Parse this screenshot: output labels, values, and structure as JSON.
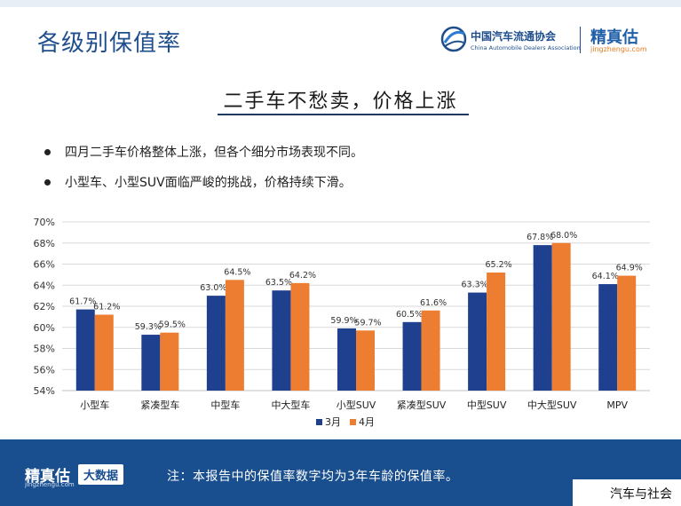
{
  "page": {
    "title": "各级别保值率",
    "headline": "二手车不愁卖，价格上涨",
    "bullets": [
      "四月二手车价格整体上涨，但各个细分市场表现不同。",
      "小型车、小型SUV面临严峻的挑战，价格持续下滑。"
    ]
  },
  "logo": {
    "caada_cn": "中国汽车流通协会",
    "caada_en": "China Automobile Dealers Association",
    "jzg_name": "精真估",
    "jzg_domain": "jingzhengu.com"
  },
  "footer": {
    "brand": "精真估",
    "domain": "jingzhengu.com",
    "tag": "大数据",
    "note": "注：本报告中的保值率数字均为3年车龄的保值率。"
  },
  "watermark": "汽车与社会",
  "colors": {
    "march": "#1f3f8f",
    "april": "#ed7d31",
    "primary": "#1a4f8f"
  },
  "chart_data": {
    "type": "bar",
    "categories": [
      "小型车",
      "紧凑型车",
      "中型车",
      "中大型车",
      "小型SUV",
      "紧凑型SUV",
      "中型SUV",
      "中大型SUV",
      "MPV"
    ],
    "series": [
      {
        "name": "3月",
        "values": [
          61.7,
          59.3,
          63.0,
          63.5,
          59.9,
          60.5,
          63.3,
          67.8,
          64.1
        ],
        "color": "#1f3f8f"
      },
      {
        "name": "4月",
        "values": [
          61.2,
          59.5,
          64.5,
          64.2,
          59.7,
          61.6,
          65.2,
          68.0,
          64.9
        ],
        "color": "#ed7d31"
      }
    ],
    "data_labels": [
      [
        "61.7%",
        "59.3%",
        "63.0%",
        "63.5%",
        "59.9%",
        "60.5%",
        "63.3%",
        "67.8%",
        "64.1%"
      ],
      [
        "61.2%",
        "59.5%",
        "64.5%",
        "64.2%",
        "59.7%",
        "61.6%",
        "65.2%",
        "68.0%",
        "64.9%"
      ]
    ],
    "yticks": [
      "54%",
      "56%",
      "58%",
      "60%",
      "62%",
      "64%",
      "66%",
      "68%",
      "70%"
    ],
    "ylim": [
      54,
      70
    ],
    "grid": true,
    "legend": "bottom-center"
  }
}
